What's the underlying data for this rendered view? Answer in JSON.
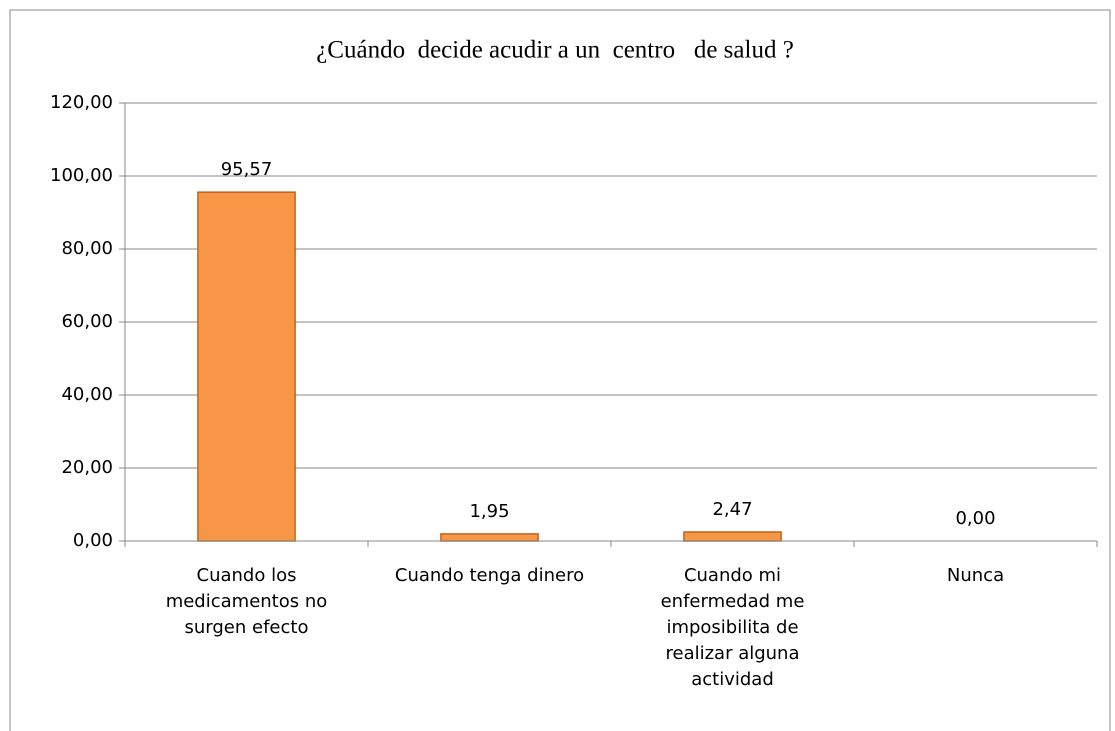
{
  "chart_data": {
    "type": "bar",
    "title": "¿Cuándo  decide acudir a un  centro   de salud ?",
    "categories": [
      "Cuando los medicamentos no surgen efecto",
      "Cuando tenga dinero",
      "Cuando mi enfermedad me imposibilita de realizar alguna actividad",
      "Nunca"
    ],
    "values": [
      95.57,
      1.95,
      2.47,
      0
    ],
    "value_labels": [
      "95,57",
      "1,95",
      "2,47",
      "0,00"
    ],
    "color": "#f79646",
    "ylim": [
      0,
      120
    ],
    "yticks": [
      {
        "value": 0,
        "label": "0,00"
      },
      {
        "value": 20,
        "label": "20,00"
      },
      {
        "value": 40,
        "label": "40,00"
      },
      {
        "value": 60,
        "label": "60,00"
      },
      {
        "value": 80,
        "label": "80,00"
      },
      {
        "value": 100,
        "label": "100,00"
      },
      {
        "value": 120,
        "label": "120,00"
      }
    ],
    "grid": true
  }
}
